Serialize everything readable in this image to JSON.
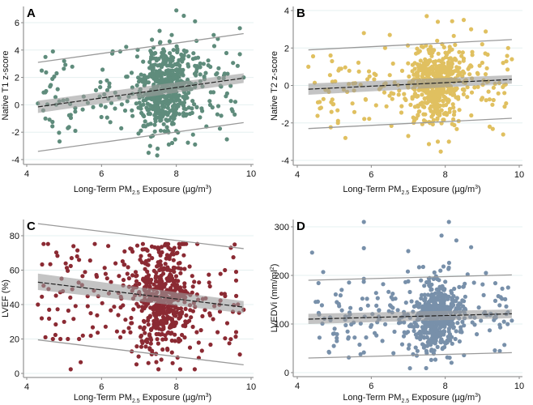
{
  "chart_data": [
    {
      "panel": "A",
      "type": "scatter",
      "title": "",
      "xlabel": "Long-Term PM2.5 Exposure (µg/m³)",
      "xlabel_parts": {
        "pre": "Long-Term PM",
        "sub": "2.5",
        "post": " Exposure (µg/m",
        "sup": "3",
        "end": ")"
      },
      "ylabel": "Native T1 z-score",
      "xlim": [
        4,
        10
      ],
      "ylim": [
        -4,
        6
      ],
      "xticks": [
        4,
        6,
        8,
        10
      ],
      "yticks": [
        -4,
        -2,
        0,
        2,
        4,
        6
      ],
      "grid": true,
      "color": "#5f8c7c",
      "fit": {
        "x": [
          4.3,
          9.8
        ],
        "y": [
          -0.15,
          1.95
        ]
      },
      "ci": {
        "x": [
          4.3,
          9.8
        ],
        "lower": [
          -0.6,
          1.6
        ],
        "upper": [
          0.3,
          2.3
        ]
      },
      "pi": {
        "x": [
          4.3,
          9.8
        ],
        "lower": [
          -3.4,
          -1.3
        ],
        "upper": [
          3.1,
          5.2
        ]
      },
      "cluster": {
        "center_x": 7.75,
        "spread_x": 0.45,
        "mean_y_intercept": -0.15,
        "slope": 0.38,
        "sd_y": 1.5
      },
      "points": [
        [
          4.3,
          0.1
        ],
        [
          4.4,
          2.5
        ],
        [
          4.5,
          3.5
        ],
        [
          4.5,
          -1.0
        ],
        [
          4.7,
          3.9
        ],
        [
          4.8,
          2.3
        ],
        [
          5.0,
          3.2
        ],
        [
          5.1,
          -1.7
        ],
        [
          5.3,
          -1.9
        ],
        [
          6.3,
          3.9
        ],
        [
          6.5,
          3.9
        ],
        [
          7.3,
          -3.0
        ],
        [
          7.5,
          -3.2
        ],
        [
          7.8,
          -2.9
        ],
        [
          8.0,
          6.9
        ],
        [
          8.2,
          6.5
        ],
        [
          8.5,
          6.1
        ],
        [
          9.0,
          5.1
        ],
        [
          9.7,
          5.6
        ],
        [
          9.7,
          3.7
        ],
        [
          9.8,
          2.0
        ],
        [
          9.2,
          -0.8
        ],
        [
          9.1,
          -0.7
        ],
        [
          8.5,
          -2.9
        ]
      ]
    },
    {
      "panel": "B",
      "type": "scatter",
      "xlabel": "Long-Term PM2.5 Exposure (µg/m³)",
      "xlabel_parts": {
        "pre": "Long-Term PM",
        "sub": "2.5",
        "post": " Exposure (µg/m",
        "sup": "3",
        "end": ")"
      },
      "ylabel": "Native T2 z-score",
      "xlim": [
        4,
        10
      ],
      "ylim": [
        -4,
        4
      ],
      "xticks": [
        4,
        6,
        8,
        10
      ],
      "yticks": [
        -4,
        -2,
        0,
        2,
        4
      ],
      "grid": true,
      "color": "#e0c060",
      "fit": {
        "x": [
          4.3,
          9.8
        ],
        "y": [
          -0.2,
          0.32
        ]
      },
      "ci": {
        "x": [
          4.3,
          9.8
        ],
        "lower": [
          -0.5,
          0.1
        ],
        "upper": [
          0.1,
          0.55
        ]
      },
      "pi": {
        "x": [
          4.3,
          9.8
        ],
        "lower": [
          -2.3,
          -1.75
        ],
        "upper": [
          1.9,
          2.45
        ]
      },
      "cluster": {
        "center_x": 7.75,
        "spread_x": 0.45,
        "mean_y_intercept": -0.2,
        "slope": 0.095,
        "sd_y": 1.0
      },
      "points": [
        [
          4.3,
          1.0
        ],
        [
          4.9,
          1.6
        ],
        [
          5.1,
          -2.0
        ],
        [
          5.3,
          -2.8
        ],
        [
          5.8,
          2.8
        ],
        [
          6.5,
          2.7
        ],
        [
          7.0,
          -2.7
        ],
        [
          7.5,
          3.7
        ],
        [
          7.8,
          3.4
        ],
        [
          7.8,
          -3.0
        ],
        [
          8.1,
          -3.0
        ],
        [
          8.5,
          3.5
        ],
        [
          8.7,
          3.0
        ],
        [
          9.0,
          2.2
        ],
        [
          9.2,
          -2.2
        ],
        [
          9.8,
          1.4
        ],
        [
          9.7,
          2.0
        ],
        [
          9.6,
          -0.4
        ]
      ]
    },
    {
      "panel": "C",
      "type": "scatter",
      "xlabel": "Long-Term PM2.5 Exposure (µg/m³)",
      "xlabel_parts": {
        "pre": "Long-Term PM",
        "sub": "2.5",
        "post": " Exposure (µg/m",
        "sup": "3",
        "end": ")"
      },
      "ylabel": "LVEF (%)",
      "xlim": [
        4,
        10
      ],
      "ylim": [
        0,
        80
      ],
      "xticks": [
        4,
        6,
        8,
        10
      ],
      "yticks": [
        0,
        20,
        40,
        60,
        80
      ],
      "grid": true,
      "color": "#8b2a33",
      "fit": {
        "x": [
          4.3,
          9.8
        ],
        "y": [
          53,
          38.5
        ]
      },
      "ci": {
        "x": [
          4.3,
          9.8
        ],
        "lower": [
          48.5,
          35
        ],
        "upper": [
          58,
          42
        ]
      },
      "pi": {
        "x": [
          4.3,
          9.8
        ],
        "lower": [
          19.5,
          5
        ],
        "upper": [
          87,
          72.5
        ]
      },
      "cluster": {
        "center_x": 7.6,
        "spread_x": 0.5,
        "mean_y_intercept": 53,
        "slope": -2.64,
        "sd_y": 16
      },
      "points": [
        [
          4.3,
          40
        ],
        [
          4.4,
          32
        ],
        [
          4.5,
          21
        ],
        [
          4.6,
          37
        ],
        [
          4.7,
          20
        ],
        [
          4.9,
          20
        ],
        [
          5.0,
          30
        ],
        [
          5.1,
          20
        ],
        [
          5.2,
          67
        ],
        [
          5.4,
          66
        ],
        [
          5.4,
          20
        ],
        [
          5.5,
          22
        ],
        [
          7.1,
          72
        ],
        [
          7.2,
          72
        ],
        [
          7.9,
          6
        ],
        [
          7.6,
          8
        ],
        [
          9.6,
          24
        ],
        [
          9.7,
          11
        ],
        [
          9.8,
          37
        ],
        [
          9.3,
          60
        ],
        [
          9.6,
          59
        ],
        [
          9.6,
          54
        ],
        [
          8.6,
          9
        ]
      ]
    },
    {
      "panel": "D",
      "type": "scatter",
      "xlabel": "Long-Term PM2.5 Exposure (µg/m³)",
      "xlabel_parts": {
        "pre": "Long-Term PM",
        "sub": "2.5",
        "post": " Exposure (µg/m",
        "sup": "3",
        "end": ")"
      },
      "ylabel": "LVEDVi (mm/ml²)",
      "ylabel_parts": {
        "pre": "LVEDVi (mm/ml",
        "sup": "2",
        "end": ")"
      },
      "xlim": [
        4,
        10
      ],
      "ylim": [
        0,
        300
      ],
      "xticks": [
        4,
        6,
        8,
        10
      ],
      "yticks": [
        0,
        100,
        200,
        300
      ],
      "grid": true,
      "color": "#7890aa",
      "fit": {
        "x": [
          4.3,
          9.8
        ],
        "y": [
          110,
          121
        ]
      },
      "ci": {
        "x": [
          4.3,
          9.8
        ],
        "lower": [
          100,
          112
        ],
        "upper": [
          121,
          130
        ]
      },
      "pi": {
        "x": [
          4.3,
          9.8
        ],
        "lower": [
          30,
          41
        ],
        "upper": [
          190,
          201
        ]
      },
      "cluster": {
        "center_x": 7.75,
        "spread_x": 0.45,
        "mean_y_intercept": 110,
        "slope": 2.0,
        "sd_y": 38
      },
      "points": [
        [
          4.4,
          247
        ],
        [
          4.6,
          72
        ],
        [
          4.7,
          207
        ],
        [
          5.8,
          310
        ],
        [
          5.8,
          256
        ],
        [
          5.8,
          193
        ],
        [
          6.6,
          40
        ],
        [
          7.0,
          250
        ],
        [
          7.5,
          40
        ],
        [
          7.9,
          282
        ],
        [
          8.1,
          310
        ],
        [
          8.3,
          272
        ],
        [
          8.7,
          258
        ],
        [
          9.1,
          205
        ],
        [
          9.6,
          57
        ],
        [
          9.7,
          175
        ],
        [
          9.8,
          107
        ],
        [
          9.2,
          87
        ]
      ]
    }
  ],
  "panels": [
    {
      "letter": "A"
    },
    {
      "letter": "B"
    },
    {
      "letter": "C"
    },
    {
      "letter": "D"
    }
  ]
}
